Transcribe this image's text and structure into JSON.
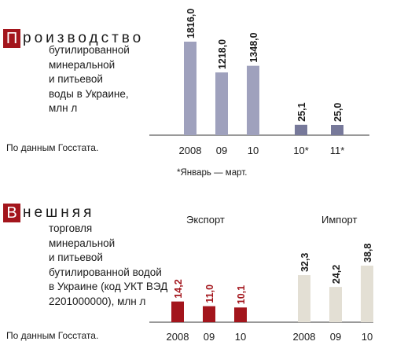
{
  "colors": {
    "cap_red": "#a3151c",
    "production_bar": "#9fa1bd",
    "production_bar_dark": "#77799a",
    "export_bar": "#a3151c",
    "import_bar": "#e3dfd4",
    "axis": "#333333"
  },
  "section1": {
    "cap": "П",
    "word": "роизводство",
    "desc_lines": [
      "бутилированной",
      "минеральной",
      "и питьевой",
      "воды в Украине,",
      "млн л"
    ],
    "source": "По данным Госстата.",
    "footnote": "*Январь — март."
  },
  "section2": {
    "cap": "В",
    "word": "нешняя",
    "desc_lines": [
      "торговля",
      "минеральной",
      "и питьевой",
      "бутилированной водой",
      "в Украине (код УКТ ВЭД",
      "2201000000), млн л"
    ],
    "source": "По данным Госстата.",
    "export_title": "Экспорт",
    "import_title": "Импорт"
  },
  "chart_data": [
    {
      "type": "bar",
      "title": "Производство бутилированной минеральной и питьевой воды в Украине, млн л",
      "categories": [
        "2008",
        "09",
        "10",
        "10*",
        "11*"
      ],
      "values": [
        1816.0,
        1218.0,
        1348.0,
        25.1,
        25.0
      ],
      "value_labels": [
        "1816,0",
        "1218,0",
        "1348,0",
        "25,1",
        "25,0"
      ],
      "ylabel": "млн л"
    },
    {
      "type": "bar",
      "title": "Внешняя торговля минеральной и питьевой бутилированной водой в Украине (код УКТ ВЭД 2201000000), млн л",
      "series": [
        {
          "name": "Экспорт",
          "categories": [
            "2008",
            "09",
            "10"
          ],
          "values": [
            14.2,
            11.0,
            10.1
          ],
          "value_labels": [
            "14,2",
            "11,0",
            "10,1"
          ]
        },
        {
          "name": "Импорт",
          "categories": [
            "2008",
            "09",
            "10"
          ],
          "values": [
            32.3,
            24.2,
            38.8
          ],
          "value_labels": [
            "32,3",
            "24,2",
            "38,8"
          ]
        }
      ],
      "ylabel": "млн л"
    }
  ]
}
